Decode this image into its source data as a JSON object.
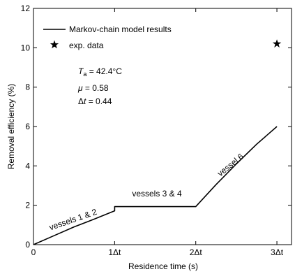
{
  "chart_data": {
    "type": "line",
    "xlabel": "Residence time (s)",
    "ylabel": "Removal efficiency (%)",
    "ylim": [
      0,
      12
    ],
    "yticks": [
      "0",
      "2",
      "4",
      "6",
      "8",
      "10",
      "12"
    ],
    "xticks": [
      "0",
      "1Δt",
      "2Δt",
      "3Δt"
    ],
    "xlim": [
      0,
      3.18
    ],
    "grid": false,
    "legend_position": "top-left",
    "legend": {
      "line_label": "Markov-chain model results",
      "marker_label": "exp. data"
    },
    "series": [
      {
        "name": "Markov-chain model results",
        "kind": "line",
        "color": "#000000",
        "x": [
          0,
          0.25,
          0.5,
          0.75,
          1.0,
          1.0,
          1.5,
          2.0,
          2.25,
          2.5,
          2.75,
          3.0
        ],
        "y": [
          0,
          0.45,
          0.9,
          1.3,
          1.72,
          1.93,
          1.93,
          1.93,
          3.05,
          4.1,
          5.1,
          6.0
        ]
      },
      {
        "name": "exp. data",
        "kind": "marker",
        "marker": "star",
        "color": "#000000",
        "x": [
          3.0
        ],
        "y": [
          10.2
        ]
      }
    ],
    "annotations": {
      "ta_sym": "T",
      "ta_sub": "a",
      "ta_val": " = 42.4°C",
      "mu_sym": "μ",
      "mu_val": " = 0.58",
      "dt_sym": "Δ",
      "dt_var": "t",
      "dt_val": " = 0.44",
      "segment1": "vessels 1 & 2",
      "segment2": "vessels 3 & 4",
      "segment3": "vessel 6"
    }
  }
}
